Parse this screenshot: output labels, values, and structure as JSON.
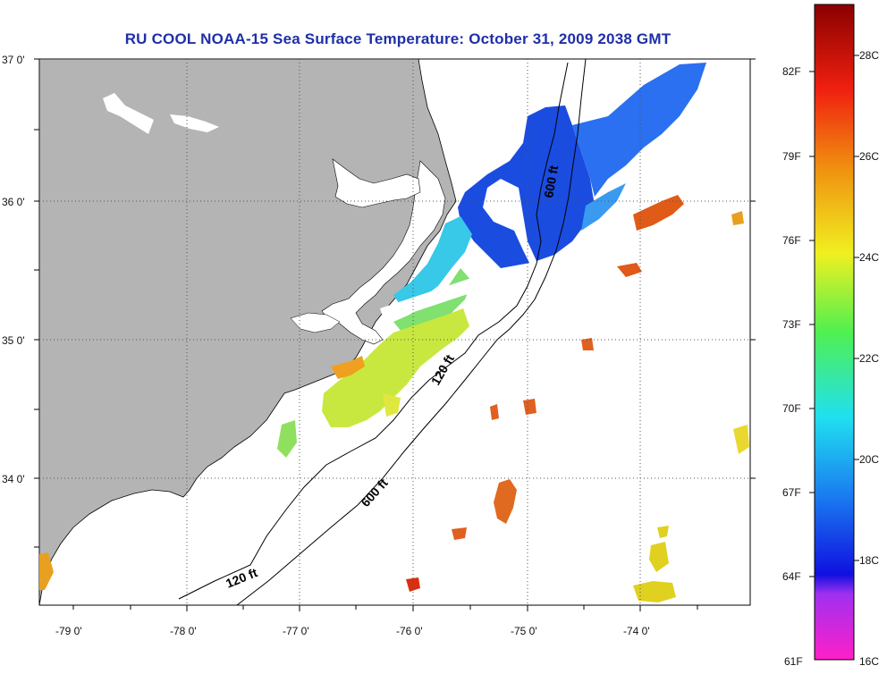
{
  "title": "RU COOL  NOAA-15  Sea Surface Temperature:  October 31, 2009 2038 GMT",
  "lat_labels": [
    "37 0'",
    "36 0'",
    "35 0'",
    "34 0'"
  ],
  "lon_labels": [
    "-79 0'",
    "-78 0'",
    "-77 0'",
    "-76 0'",
    "-75 0'",
    "-74 0'"
  ],
  "contour_labels": [
    "600 ft",
    "120 ft",
    "600 ft",
    "120 ft"
  ],
  "colorbar": {
    "fahrenheit": [
      "82F",
      "79F",
      "76F",
      "73F",
      "70F",
      "67F",
      "64F",
      "61F"
    ],
    "celsius": [
      "28C",
      "26C",
      "24C",
      "22C",
      "20C",
      "18C",
      "16C"
    ]
  },
  "colors": {
    "land": "#b4b4b4",
    "title": "#1f2fa8",
    "warm": "#e0551c",
    "cold": "#1a44e0"
  }
}
